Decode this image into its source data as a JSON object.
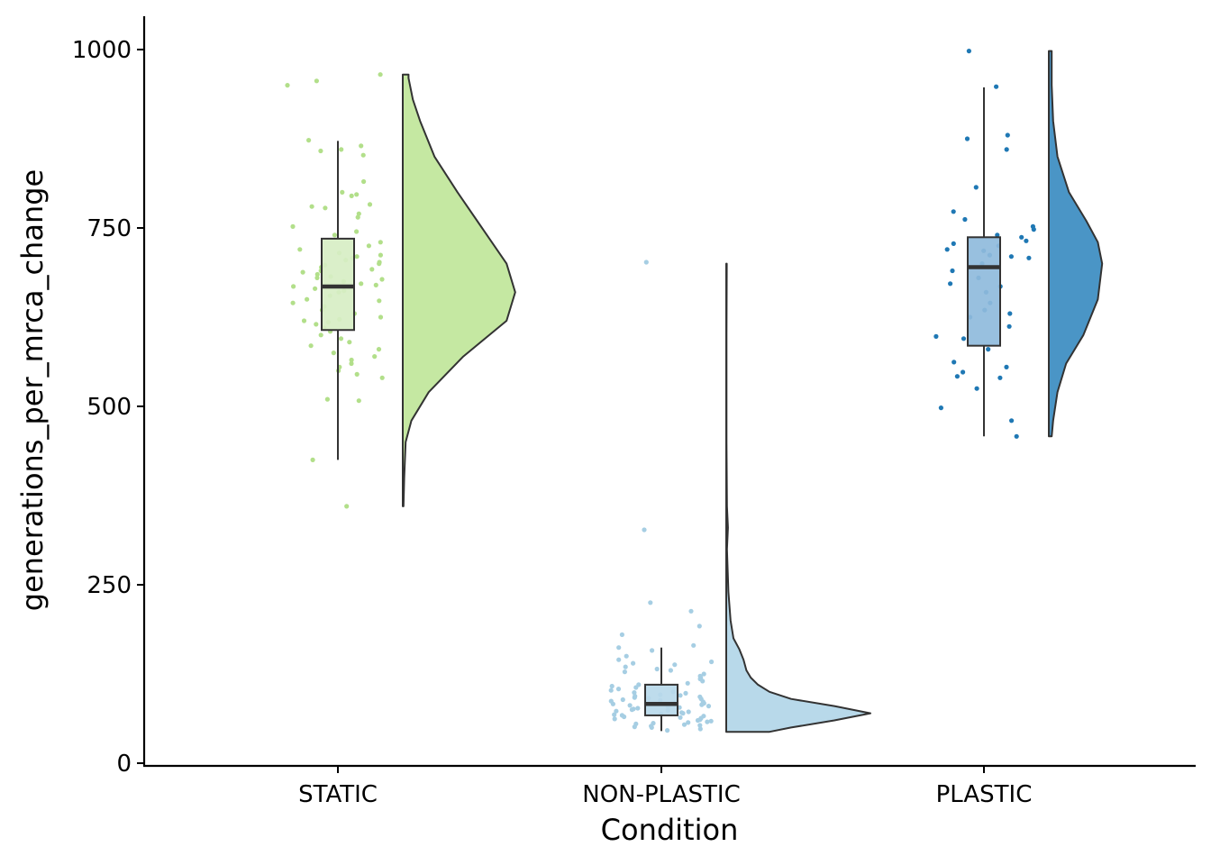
{
  "chart_data": {
    "type": "raincloud",
    "xlabel": "Condition",
    "ylabel": "generations_per_mrca_change",
    "ylim": [
      0,
      1000
    ],
    "yticks": [
      0,
      250,
      500,
      750,
      1000
    ],
    "categories": [
      "STATIC",
      "NON-PLASTIC",
      "PLASTIC"
    ],
    "grid": false,
    "legend": "none",
    "groups": [
      {
        "category": "STATIC",
        "point_color": "#b2df8a",
        "box_fill": "#d7eec4",
        "violin_fill": "#c5e8a2",
        "box": {
          "min": 425,
          "q1": 607,
          "median": 668,
          "q3": 735,
          "max": 872
        },
        "density": [
          [
            360,
            0.005
          ],
          [
            400,
            0.01
          ],
          [
            450,
            0.02
          ],
          [
            480,
            0.06
          ],
          [
            520,
            0.18
          ],
          [
            570,
            0.42
          ],
          [
            620,
            0.72
          ],
          [
            660,
            0.78
          ],
          [
            700,
            0.72
          ],
          [
            750,
            0.55
          ],
          [
            800,
            0.38
          ],
          [
            850,
            0.22
          ],
          [
            900,
            0.12
          ],
          [
            930,
            0.07
          ],
          [
            960,
            0.04
          ],
          [
            965,
            0.04
          ]
        ],
        "points": [
          950,
          965,
          956,
          873,
          865,
          860,
          858,
          852,
          815,
          800,
          797,
          795,
          783,
          780,
          778,
          770,
          765,
          752,
          745,
          740,
          730,
          725,
          720,
          715,
          712,
          710,
          708,
          705,
          702,
          700,
          698,
          695,
          692,
          690,
          688,
          685,
          682,
          680,
          678,
          675,
          672,
          670,
          668,
          665,
          662,
          660,
          655,
          650,
          648,
          645,
          640,
          635,
          630,
          625,
          622,
          620,
          618,
          615,
          610,
          605,
          600,
          595,
          590,
          585,
          580,
          575,
          570,
          565,
          560,
          555,
          550,
          545,
          540,
          510,
          508,
          425,
          360
        ]
      },
      {
        "category": "NON-PLASTIC",
        "point_color": "#a6cee3",
        "box_fill": "#b8d9ea",
        "violin_fill": "#b8d9ea",
        "box": {
          "min": 45,
          "q1": 67,
          "median": 83,
          "q3": 110,
          "max": 162
        },
        "density": [
          [
            44,
            0.3
          ],
          [
            50,
            0.45
          ],
          [
            60,
            0.75
          ],
          [
            70,
            1.0
          ],
          [
            80,
            0.75
          ],
          [
            90,
            0.45
          ],
          [
            100,
            0.3
          ],
          [
            110,
            0.22
          ],
          [
            120,
            0.17
          ],
          [
            130,
            0.14
          ],
          [
            145,
            0.12
          ],
          [
            160,
            0.09
          ],
          [
            175,
            0.05
          ],
          [
            200,
            0.03
          ],
          [
            240,
            0.015
          ],
          [
            300,
            0.005
          ],
          [
            330,
            0.012
          ],
          [
            360,
            0.005
          ],
          [
            450,
            0.002
          ],
          [
            600,
            0.002
          ],
          [
            700,
            0.004
          ]
        ],
        "points": [
          702,
          327,
          225,
          213,
          192,
          180,
          165,
          162,
          158,
          150,
          145,
          142,
          140,
          138,
          135,
          132,
          130,
          128,
          125,
          122,
          120,
          118,
          115,
          112,
          110,
          108,
          106,
          104,
          102,
          100,
          99,
          98,
          96,
          95,
          94,
          93,
          92,
          91,
          90,
          89,
          88,
          87,
          86,
          85,
          84,
          83,
          82,
          81,
          80,
          79,
          78,
          77,
          76,
          75,
          74,
          73,
          72,
          71,
          70,
          69,
          68,
          67,
          66,
          65,
          64,
          63,
          62,
          61,
          60,
          59,
          58,
          57,
          56,
          55,
          54,
          53,
          52,
          51,
          50,
          48,
          46
        ]
      },
      {
        "category": "PLASTIC",
        "point_color": "#1f78b4",
        "box_fill": "#8fbbdc",
        "violin_fill": "#4a95c6",
        "box": {
          "min": 458,
          "q1": 585,
          "median": 695,
          "q3": 737,
          "max": 947
        },
        "density": [
          [
            458,
            0.02
          ],
          [
            480,
            0.03
          ],
          [
            520,
            0.06
          ],
          [
            560,
            0.12
          ],
          [
            600,
            0.24
          ],
          [
            650,
            0.34
          ],
          [
            700,
            0.37
          ],
          [
            730,
            0.34
          ],
          [
            760,
            0.26
          ],
          [
            800,
            0.14
          ],
          [
            850,
            0.06
          ],
          [
            900,
            0.03
          ],
          [
            950,
            0.02
          ],
          [
            998,
            0.02
          ]
        ],
        "points": [
          998,
          948,
          880,
          875,
          860,
          807,
          773,
          762,
          752,
          748,
          740,
          737,
          732,
          728,
          725,
          720,
          718,
          712,
          710,
          708,
          700,
          690,
          680,
          672,
          668,
          660,
          645,
          635,
          630,
          625,
          612,
          598,
          595,
          580,
          562,
          555,
          548,
          542,
          540,
          525,
          498,
          480,
          458
        ]
      }
    ]
  }
}
